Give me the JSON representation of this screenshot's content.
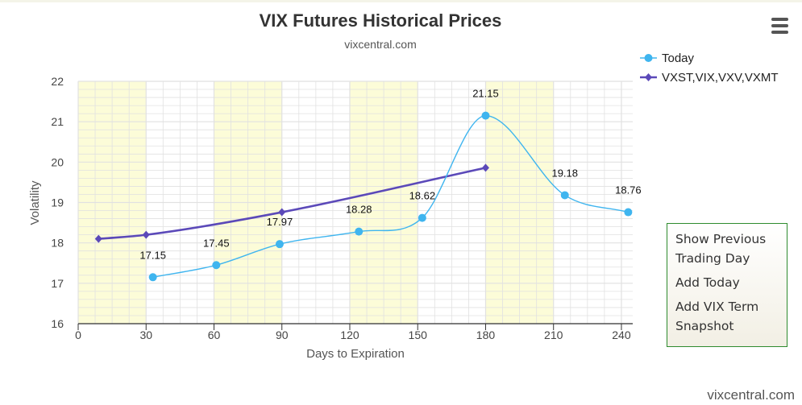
{
  "page": {
    "credit": "vixcentral.com"
  },
  "context_menu": {
    "items": [
      "Show Previous Trading Day",
      "Add Today",
      "Add VIX Term Snapshot"
    ]
  },
  "colors": {
    "today": "#3fb5ef",
    "term": "#5b49b9",
    "band": "#fcfcd8",
    "grid": "#e1e1e1",
    "axis": "#333333"
  },
  "chart_data": {
    "type": "line",
    "title": "VIX Futures Historical Prices",
    "subtitle": "vixcentral.com",
    "xlabel": "Days to Expiration",
    "ylabel": "Volatility",
    "xlim": [
      0,
      245
    ],
    "ylim": [
      16,
      22
    ],
    "x_ticks": [
      0,
      30,
      60,
      90,
      120,
      150,
      180,
      210,
      240
    ],
    "y_ticks": [
      16,
      17,
      18,
      19,
      20,
      21,
      22
    ],
    "shaded_bands": [
      [
        0,
        30
      ],
      [
        60,
        90
      ],
      [
        120,
        150
      ],
      [
        180,
        210
      ]
    ],
    "grid": true,
    "legend_position": "top-right",
    "series": [
      {
        "name": "Today",
        "marker": "circle",
        "smooth": true,
        "labels": true,
        "points": [
          {
            "x": 33,
            "y": 17.15,
            "label": "17.15"
          },
          {
            "x": 61,
            "y": 17.45,
            "label": "17.45"
          },
          {
            "x": 89,
            "y": 17.97,
            "label": "17.97"
          },
          {
            "x": 124,
            "y": 18.28,
            "label": "18.28"
          },
          {
            "x": 152,
            "y": 18.62,
            "label": "18.62"
          },
          {
            "x": 180,
            "y": 21.15,
            "label": "21.15"
          },
          {
            "x": 215,
            "y": 19.18,
            "label": "19.18"
          },
          {
            "x": 243,
            "y": 18.76,
            "label": "18.76"
          }
        ]
      },
      {
        "name": "VXST,VIX,VXV,VXMT",
        "marker": "diamond",
        "smooth": true,
        "labels": false,
        "points": [
          {
            "x": 9,
            "y": 18.1
          },
          {
            "x": 30,
            "y": 18.2
          },
          {
            "x": 90,
            "y": 18.76
          },
          {
            "x": 180,
            "y": 19.86
          }
        ]
      }
    ]
  }
}
